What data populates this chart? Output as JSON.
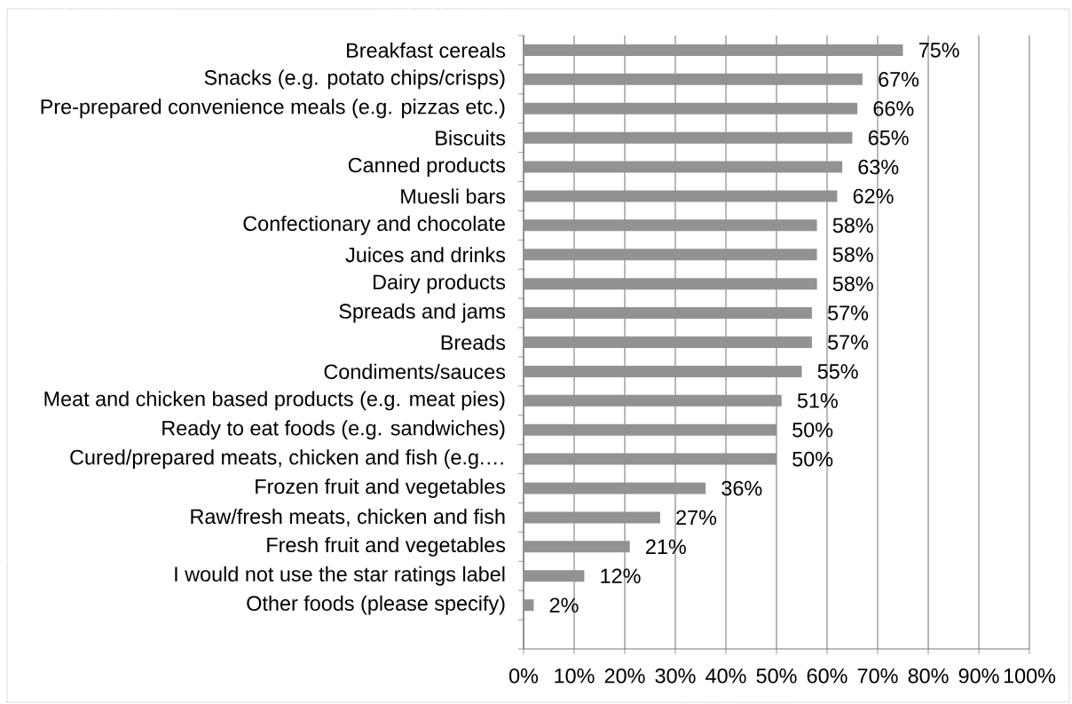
{
  "chart_data": {
    "type": "bar",
    "orientation": "horizontal",
    "categories": [
      "Breakfast cereals",
      "Snacks (e.g. potato chips/crisps)",
      "Pre-prepared convenience meals (e.g. pizzas etc.)",
      "Biscuits",
      "Canned products",
      "Muesli bars",
      "Confectionary and chocolate",
      "Juices and drinks",
      "Dairy products",
      "Spreads and jams",
      "Breads",
      "Condiments/sauces",
      "Meat and chicken based products (e.g. meat pies)",
      "Ready to eat foods (e.g. sandwiches)",
      "Cured/prepared meats, chicken and fish (e.g.…",
      "Frozen fruit and vegetables",
      "Raw/fresh meats, chicken and fish",
      "Fresh fruit and vegetables",
      "I would not use the star ratings label",
      "Other foods (please specify)"
    ],
    "values": [
      75,
      67,
      66,
      65,
      63,
      62,
      58,
      58,
      58,
      57,
      57,
      55,
      51,
      50,
      50,
      36,
      27,
      21,
      12,
      2
    ],
    "value_labels": [
      "75%",
      "67%",
      "66%",
      "65%",
      "63%",
      "62%",
      "58%",
      "58%",
      "58%",
      "57%",
      "57%",
      "55%",
      "51%",
      "50%",
      "50%",
      "36%",
      "27%",
      "21%",
      "12%",
      "2%"
    ],
    "color": "#929292",
    "xlim": [
      0,
      100
    ],
    "xticks": [
      {
        "value": 0,
        "label": "0%"
      },
      {
        "value": 10,
        "label": "10%"
      },
      {
        "value": 20,
        "label": "20%"
      },
      {
        "value": 30,
        "label": "30%"
      },
      {
        "value": 40,
        "label": "40%"
      },
      {
        "value": 50,
        "label": "50%"
      },
      {
        "value": 60,
        "label": "60%"
      },
      {
        "value": 70,
        "label": "70%"
      },
      {
        "value": 80,
        "label": "80%"
      },
      {
        "value": 90,
        "label": "90%"
      },
      {
        "value": 100,
        "label": "100%"
      }
    ],
    "grid": "x"
  }
}
